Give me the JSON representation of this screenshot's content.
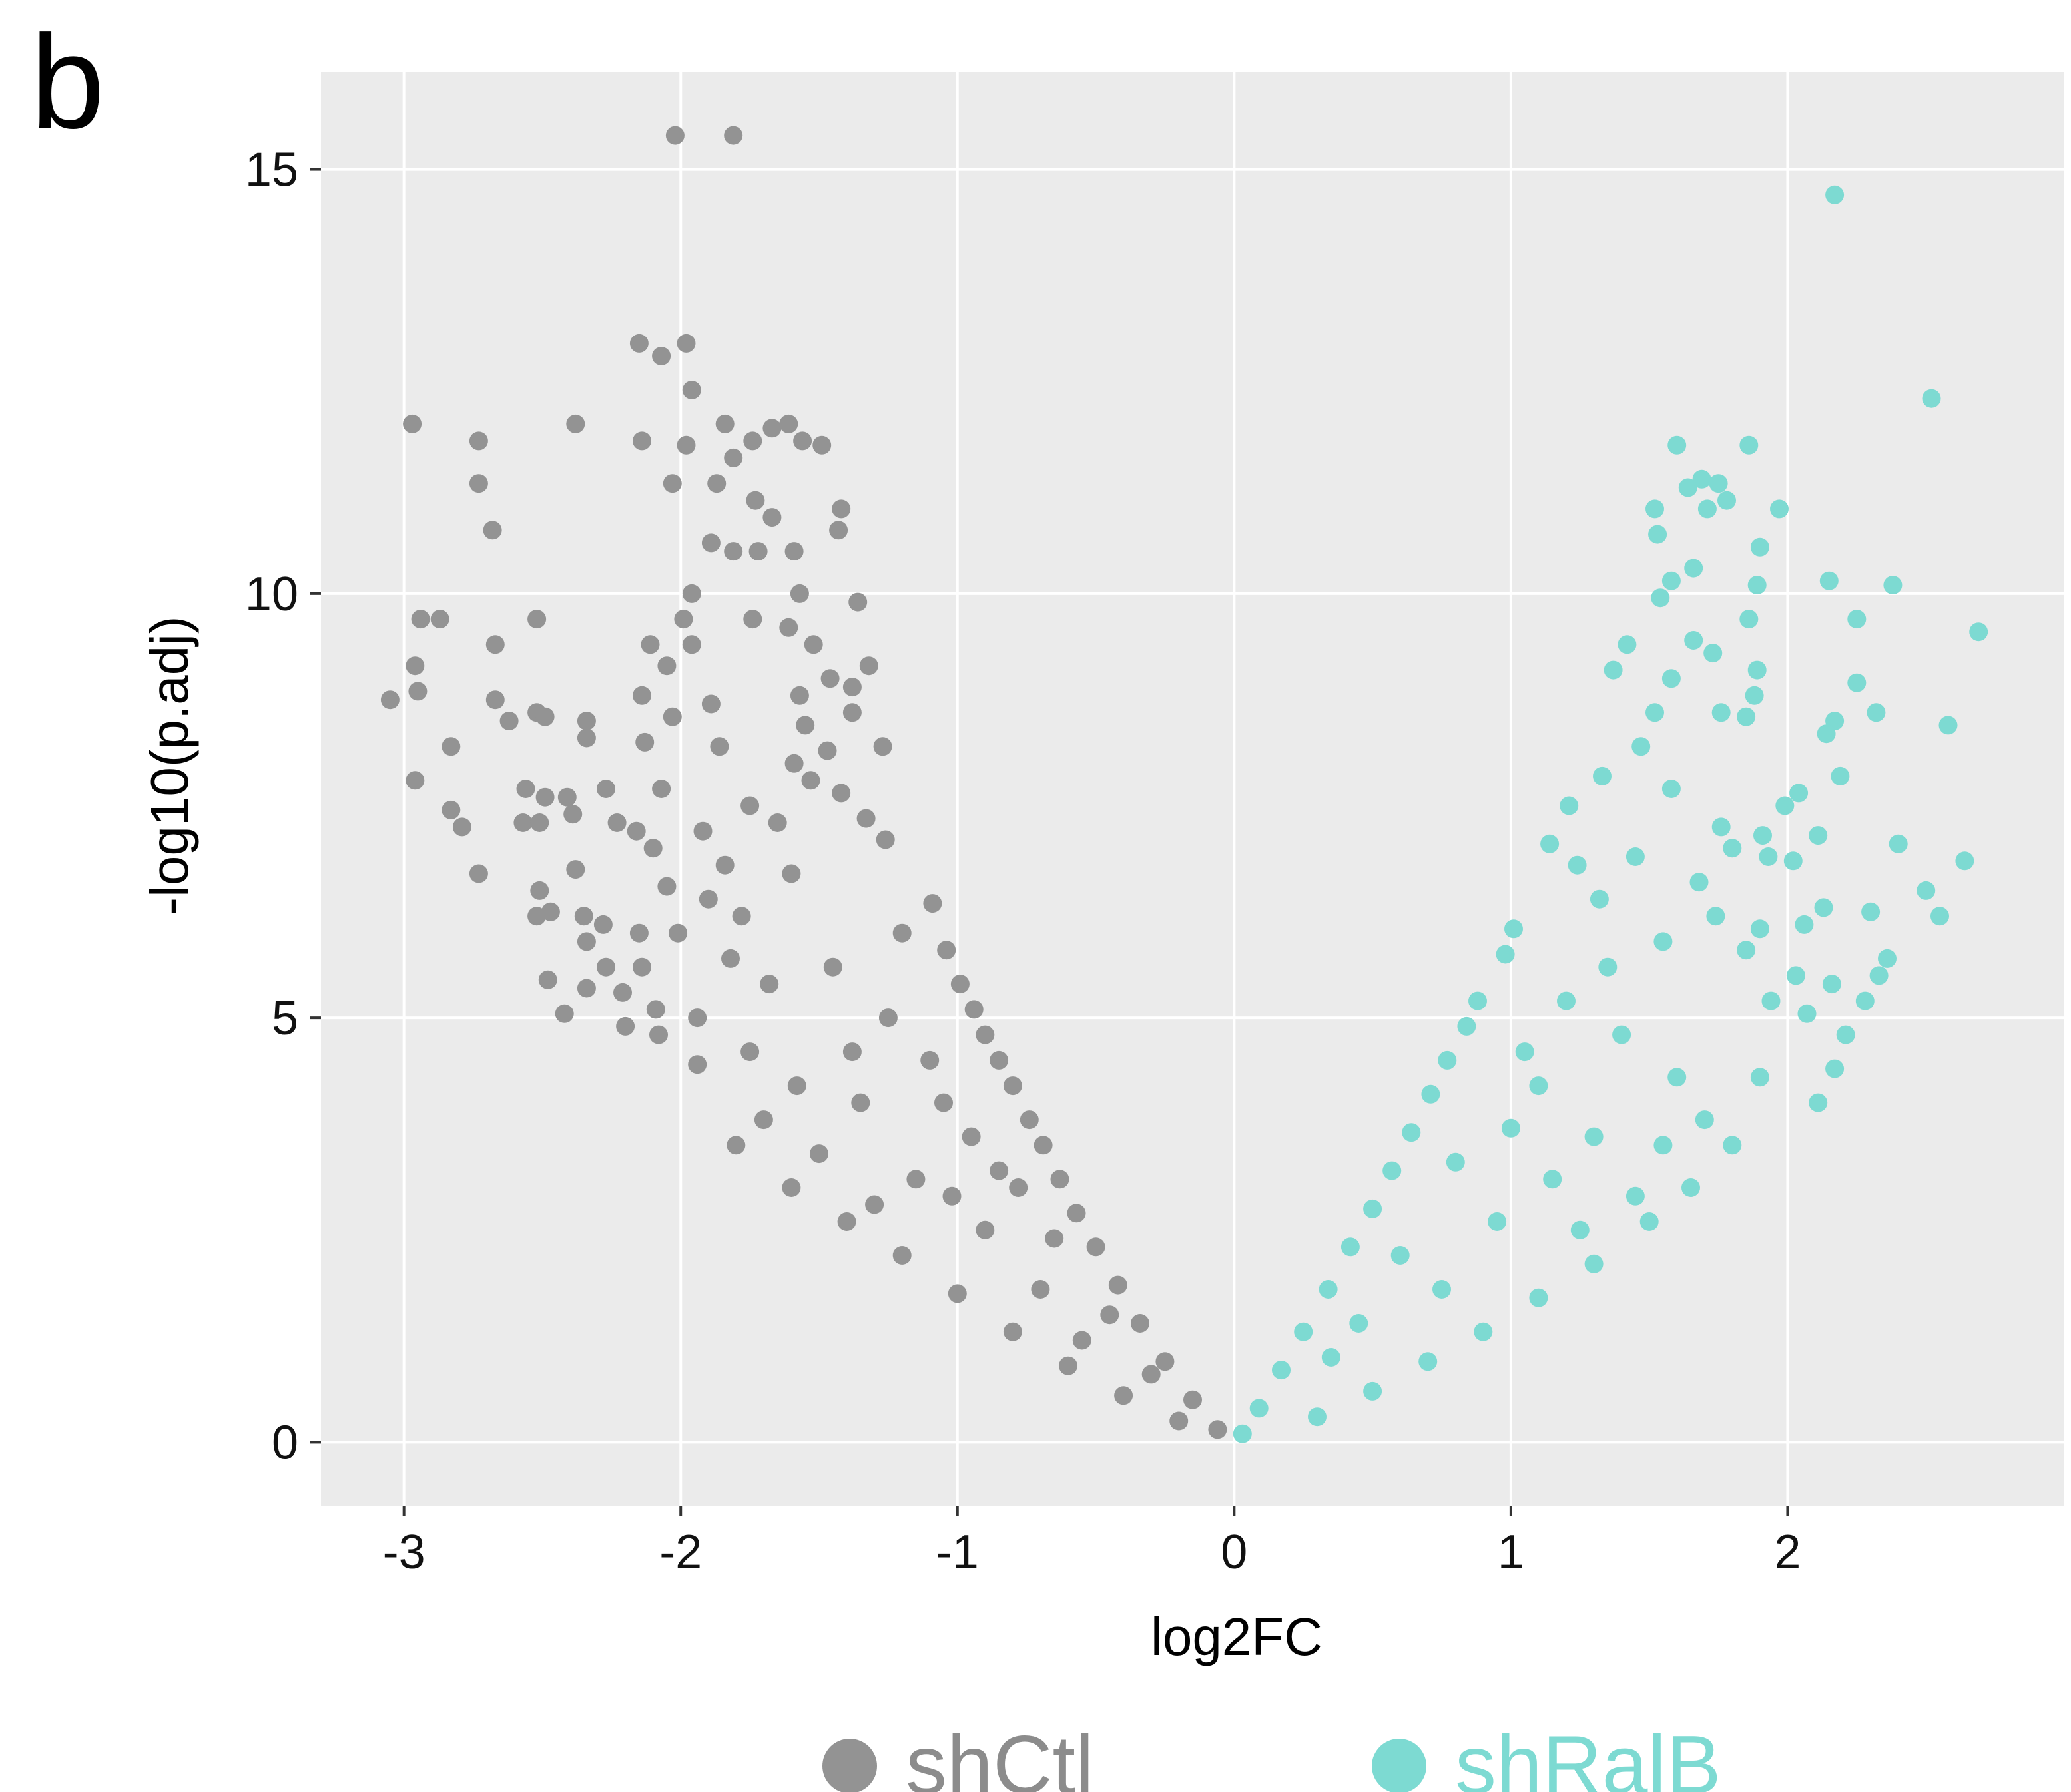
{
  "panel_label": "b",
  "colors": {
    "panel_bg": "#EBEBEB",
    "grid": "#FFFFFF",
    "shCtl": "#939393",
    "shRalB": "#7DDAD2",
    "legend_shCtl_text": "#8C8C8C",
    "legend_shRalB_text": "#7DDAD2"
  },
  "chart_data": {
    "type": "scatter",
    "title": "",
    "xlabel": "log2FC",
    "ylabel": "-log10(p.adj)",
    "xlim": [
      -3.3,
      3.0
    ],
    "ylim": [
      -0.75,
      16.15
    ],
    "x_ticks": [
      -3,
      -2,
      -1,
      0,
      1,
      2
    ],
    "x_tick_labels": [
      "-3",
      "-2",
      "-1",
      "0",
      "1",
      "2"
    ],
    "y_ticks": [
      0,
      5,
      10,
      15
    ],
    "y_tick_labels": [
      "0",
      "5",
      "10",
      "15"
    ],
    "grid": true,
    "legend": {
      "placement": "bottom",
      "entries": [
        "shCtl",
        "shRalB"
      ]
    },
    "series": [
      {
        "name": "shCtl",
        "color": "#939393",
        "points": [
          [
            -2.02,
            15.4
          ],
          [
            -1.81,
            15.4
          ],
          [
            -2.97,
            12.0
          ],
          [
            -2.15,
            12.95
          ],
          [
            -2.07,
            12.8
          ],
          [
            -1.98,
            12.95
          ],
          [
            -1.96,
            12.4
          ],
          [
            -2.38,
            12.0
          ],
          [
            -2.73,
            11.8
          ],
          [
            -2.14,
            11.8
          ],
          [
            -1.98,
            11.75
          ],
          [
            -1.84,
            12.0
          ],
          [
            -1.67,
            11.95
          ],
          [
            -1.61,
            12.0
          ],
          [
            -1.56,
            11.8
          ],
          [
            -1.49,
            11.75
          ],
          [
            -1.74,
            11.8
          ],
          [
            -1.81,
            11.6
          ],
          [
            -2.73,
            11.3
          ],
          [
            -2.03,
            11.3
          ],
          [
            -1.87,
            11.3
          ],
          [
            -1.73,
            11.1
          ],
          [
            -1.67,
            10.9
          ],
          [
            -1.42,
            11.0
          ],
          [
            -2.68,
            10.75
          ],
          [
            -1.89,
            10.6
          ],
          [
            -1.43,
            10.75
          ],
          [
            -1.81,
            10.5
          ],
          [
            -1.72,
            10.5
          ],
          [
            -1.59,
            10.5
          ],
          [
            -1.96,
            10.0
          ],
          [
            -1.57,
            10.0
          ],
          [
            -1.36,
            9.9
          ],
          [
            -2.94,
            9.7
          ],
          [
            -2.87,
            9.7
          ],
          [
            -2.52,
            9.7
          ],
          [
            -1.99,
            9.7
          ],
          [
            -1.74,
            9.7
          ],
          [
            -1.61,
            9.6
          ],
          [
            -2.67,
            9.4
          ],
          [
            -2.11,
            9.4
          ],
          [
            -1.96,
            9.4
          ],
          [
            -1.52,
            9.4
          ],
          [
            -2.96,
            9.15
          ],
          [
            -2.05,
            9.15
          ],
          [
            -1.32,
            9.15
          ],
          [
            -3.05,
            8.75
          ],
          [
            -2.95,
            8.85
          ],
          [
            -2.67,
            8.75
          ],
          [
            -2.14,
            8.8
          ],
          [
            -1.89,
            8.7
          ],
          [
            -1.57,
            8.8
          ],
          [
            -1.38,
            8.6
          ],
          [
            -2.62,
            8.5
          ],
          [
            -2.52,
            8.6
          ],
          [
            -2.49,
            8.55
          ],
          [
            -2.34,
            8.5
          ],
          [
            -2.03,
            8.55
          ],
          [
            -2.34,
            8.3
          ],
          [
            -2.13,
            8.25
          ],
          [
            -2.83,
            8.2
          ],
          [
            -1.86,
            8.2
          ],
          [
            -1.27,
            8.2
          ],
          [
            -2.56,
            7.7
          ],
          [
            -2.49,
            7.6
          ],
          [
            -2.41,
            7.6
          ],
          [
            -2.27,
            7.7
          ],
          [
            -2.07,
            7.7
          ],
          [
            -2.96,
            7.8
          ],
          [
            -2.83,
            7.45
          ],
          [
            -2.79,
            7.25
          ],
          [
            -2.57,
            7.3
          ],
          [
            -2.51,
            7.3
          ],
          [
            -2.39,
            7.4
          ],
          [
            -2.23,
            7.3
          ],
          [
            -2.16,
            7.2
          ],
          [
            -2.73,
            6.7
          ],
          [
            -2.51,
            6.5
          ],
          [
            -2.38,
            6.75
          ],
          [
            -2.52,
            6.2
          ],
          [
            -2.47,
            6.25
          ],
          [
            -2.35,
            6.2
          ],
          [
            -2.28,
            6.1
          ],
          [
            -2.15,
            6.0
          ],
          [
            -2.34,
            5.9
          ],
          [
            -2.27,
            5.6
          ],
          [
            -2.14,
            5.6
          ],
          [
            -2.48,
            5.45
          ],
          [
            -2.34,
            5.35
          ],
          [
            -2.21,
            5.3
          ],
          [
            -2.42,
            5.05
          ],
          [
            -2.2,
            4.9
          ],
          [
            -2.08,
            4.8
          ],
          [
            -2.09,
            5.1
          ],
          [
            -1.94,
            5.0
          ],
          [
            -2.1,
            7.0
          ],
          [
            -1.84,
            6.8
          ],
          [
            -2.05,
            6.55
          ],
          [
            -1.9,
            6.4
          ],
          [
            -1.94,
            4.45
          ],
          [
            -1.75,
            4.6
          ],
          [
            -1.55,
            8.45
          ],
          [
            -1.47,
            8.15
          ],
          [
            -1.42,
            7.65
          ],
          [
            -1.33,
            7.35
          ],
          [
            -1.26,
            7.1
          ],
          [
            -1.53,
            7.8
          ],
          [
            -1.59,
            8.0
          ],
          [
            -1.38,
            8.9
          ],
          [
            -1.46,
            9.0
          ],
          [
            -1.75,
            7.5
          ],
          [
            -1.65,
            7.3
          ],
          [
            -1.92,
            7.2
          ],
          [
            -1.78,
            6.2
          ],
          [
            -1.82,
            5.7
          ],
          [
            -1.68,
            5.4
          ],
          [
            -2.01,
            6.0
          ],
          [
            -1.6,
            6.7
          ],
          [
            -1.09,
            6.35
          ],
          [
            -1.04,
            5.8
          ],
          [
            -0.99,
            5.4
          ],
          [
            -0.94,
            5.1
          ],
          [
            -0.9,
            4.8
          ],
          [
            -0.85,
            4.5
          ],
          [
            -0.8,
            4.2
          ],
          [
            -0.74,
            3.8
          ],
          [
            -0.69,
            3.5
          ],
          [
            -0.63,
            3.1
          ],
          [
            -0.57,
            2.7
          ],
          [
            -0.5,
            2.3
          ],
          [
            -0.42,
            1.85
          ],
          [
            -0.34,
            1.4
          ],
          [
            -0.25,
            0.95
          ],
          [
            -0.15,
            0.5
          ],
          [
            -0.06,
            0.15
          ],
          [
            -1.8,
            3.5
          ],
          [
            -1.6,
            3.0
          ],
          [
            -1.4,
            2.6
          ],
          [
            -1.2,
            2.2
          ],
          [
            -1.0,
            1.75
          ],
          [
            -0.8,
            1.3
          ],
          [
            -0.6,
            0.9
          ],
          [
            -0.4,
            0.55
          ],
          [
            -0.2,
            0.25
          ],
          [
            -1.25,
            5.0
          ],
          [
            -1.1,
            4.5
          ],
          [
            -1.35,
            4.0
          ],
          [
            -0.95,
            3.6
          ],
          [
            -1.5,
            3.4
          ],
          [
            -0.78,
            3.0
          ],
          [
            -1.15,
            3.1
          ],
          [
            -0.65,
            2.4
          ],
          [
            -0.9,
            2.5
          ],
          [
            -1.3,
            2.8
          ],
          [
            -0.7,
            1.8
          ],
          [
            -0.45,
            1.5
          ],
          [
            -0.55,
            1.2
          ],
          [
            -0.3,
            0.8
          ],
          [
            -1.7,
            3.8
          ],
          [
            -1.45,
            5.6
          ],
          [
            -1.2,
            6.0
          ],
          [
            -1.05,
            4.0
          ],
          [
            -0.85,
            3.2
          ],
          [
            -1.38,
            4.6
          ],
          [
            -1.58,
            4.2
          ],
          [
            -1.02,
            2.9
          ]
        ]
      },
      {
        "name": "shRalB",
        "color": "#7DDAD2",
        "points": [
          [
            2.17,
            14.7
          ],
          [
            2.52,
            12.3
          ],
          [
            1.6,
            11.75
          ],
          [
            1.86,
            11.75
          ],
          [
            1.69,
            11.35
          ],
          [
            1.64,
            11.25
          ],
          [
            1.75,
            11.3
          ],
          [
            1.78,
            11.1
          ],
          [
            1.52,
            11.0
          ],
          [
            1.71,
            11.0
          ],
          [
            1.97,
            11.0
          ],
          [
            1.53,
            10.7
          ],
          [
            1.9,
            10.55
          ],
          [
            1.66,
            10.3
          ],
          [
            1.58,
            10.15
          ],
          [
            1.89,
            10.1
          ],
          [
            2.15,
            10.15
          ],
          [
            2.38,
            10.1
          ],
          [
            1.54,
            9.95
          ],
          [
            1.86,
            9.7
          ],
          [
            2.25,
            9.7
          ],
          [
            2.69,
            9.55
          ],
          [
            1.66,
            9.45
          ],
          [
            1.73,
            9.3
          ],
          [
            1.89,
            9.1
          ],
          [
            1.58,
            9.0
          ],
          [
            2.25,
            8.95
          ],
          [
            1.88,
            8.8
          ],
          [
            1.76,
            8.6
          ],
          [
            1.85,
            8.55
          ],
          [
            2.17,
            8.5
          ],
          [
            2.32,
            8.6
          ],
          [
            2.58,
            8.45
          ],
          [
            2.14,
            8.35
          ],
          [
            2.19,
            7.85
          ],
          [
            2.04,
            7.65
          ],
          [
            1.99,
            7.5
          ],
          [
            1.91,
            7.15
          ],
          [
            1.76,
            7.25
          ],
          [
            2.11,
            7.15
          ],
          [
            2.4,
            7.05
          ],
          [
            2.64,
            6.85
          ],
          [
            1.93,
            6.9
          ],
          [
            2.02,
            6.85
          ],
          [
            2.5,
            6.5
          ],
          [
            2.13,
            6.3
          ],
          [
            2.3,
            6.25
          ],
          [
            2.55,
            6.2
          ],
          [
            2.36,
            5.7
          ],
          [
            2.33,
            5.5
          ],
          [
            2.16,
            5.4
          ],
          [
            2.28,
            5.2
          ],
          [
            1.9,
            6.05
          ],
          [
            2.06,
            6.1
          ],
          [
            2.03,
            5.5
          ],
          [
            1.94,
            5.2
          ],
          [
            2.07,
            5.05
          ],
          [
            2.21,
            4.8
          ],
          [
            2.17,
            4.4
          ],
          [
            2.11,
            4.0
          ],
          [
            1.42,
            9.4
          ],
          [
            1.37,
            9.1
          ],
          [
            1.52,
            8.6
          ],
          [
            1.47,
            8.2
          ],
          [
            1.33,
            7.85
          ],
          [
            1.21,
            7.5
          ],
          [
            1.14,
            7.05
          ],
          [
            1.58,
            7.7
          ],
          [
            1.8,
            7.0
          ],
          [
            1.68,
            6.6
          ],
          [
            1.24,
            6.8
          ],
          [
            1.01,
            6.05
          ],
          [
            0.98,
            5.75
          ],
          [
            1.45,
            6.9
          ],
          [
            1.32,
            6.4
          ],
          [
            1.74,
            6.2
          ],
          [
            1.55,
            5.9
          ],
          [
            1.85,
            5.8
          ],
          [
            0.88,
            5.2
          ],
          [
            0.84,
            4.9
          ],
          [
            0.77,
            4.5
          ],
          [
            0.71,
            4.1
          ],
          [
            0.64,
            3.65
          ],
          [
            0.57,
            3.2
          ],
          [
            0.5,
            2.75
          ],
          [
            0.42,
            2.3
          ],
          [
            0.34,
            1.8
          ],
          [
            0.25,
            1.3
          ],
          [
            0.17,
            0.85
          ],
          [
            0.09,
            0.4
          ],
          [
            0.03,
            0.1
          ],
          [
            1.8,
            3.5
          ],
          [
            1.65,
            3.0
          ],
          [
            1.5,
            2.6
          ],
          [
            1.3,
            2.1
          ],
          [
            1.1,
            1.7
          ],
          [
            0.9,
            1.3
          ],
          [
            0.7,
            0.95
          ],
          [
            0.5,
            0.6
          ],
          [
            0.3,
            0.3
          ],
          [
            1.2,
            5.2
          ],
          [
            1.05,
            4.6
          ],
          [
            1.4,
            4.8
          ],
          [
            1.6,
            4.3
          ],
          [
            1.9,
            4.3
          ],
          [
            1.0,
            3.7
          ],
          [
            1.3,
            3.6
          ],
          [
            0.8,
            3.3
          ],
          [
            1.15,
            3.1
          ],
          [
            1.55,
            3.5
          ],
          [
            0.95,
            2.6
          ],
          [
            1.25,
            2.5
          ],
          [
            0.6,
            2.2
          ],
          [
            0.75,
            1.8
          ],
          [
            0.45,
            1.4
          ],
          [
            1.45,
            2.9
          ],
          [
            1.7,
            3.8
          ],
          [
            0.35,
            1.0
          ],
          [
            1.1,
            4.2
          ],
          [
            1.35,
            5.6
          ]
        ]
      }
    ]
  }
}
